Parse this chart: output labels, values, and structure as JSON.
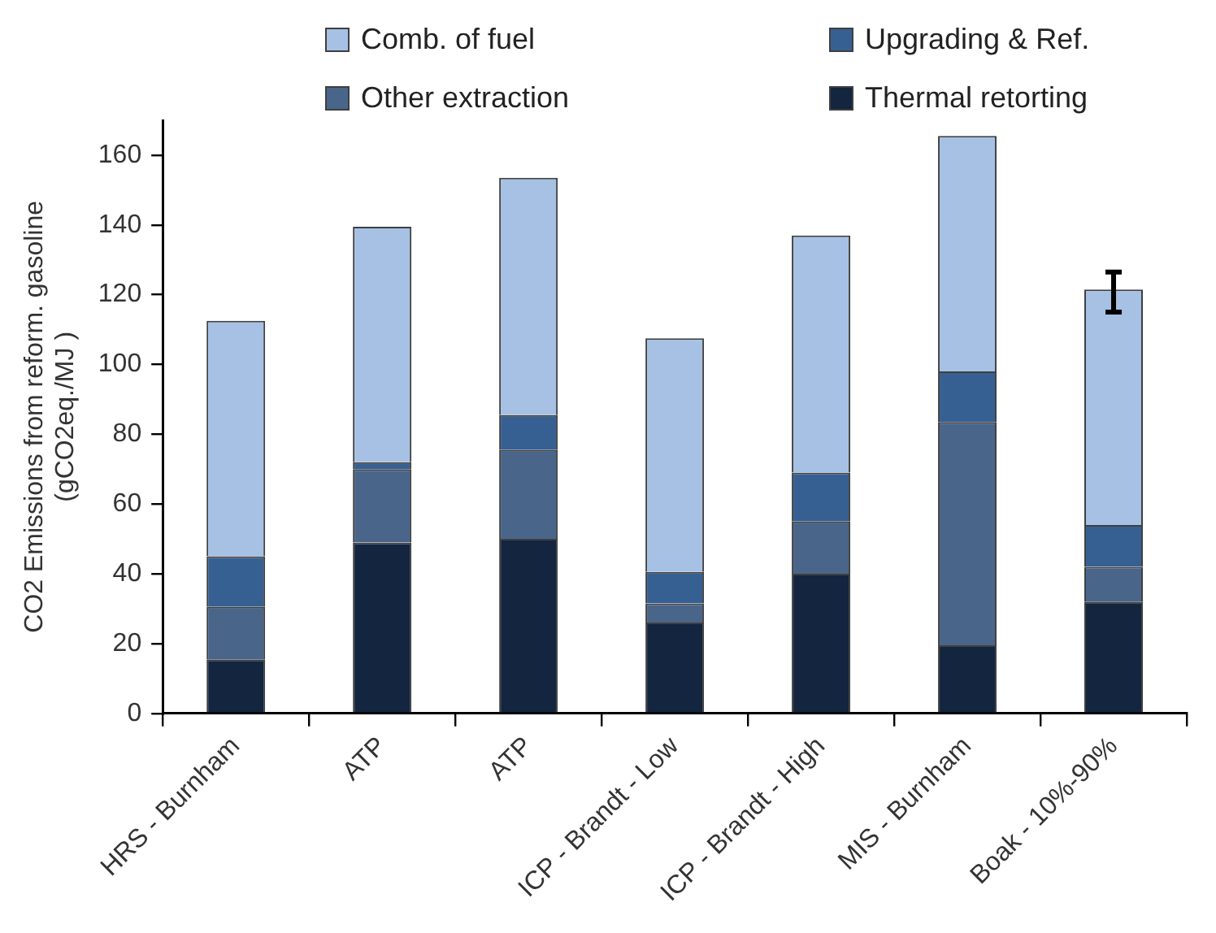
{
  "chart_data": {
    "type": "bar",
    "ylabel": "CO2 Emissions from reform. gasoline\n(gCO2eq./MJ )",
    "categories": [
      "HRS - Burnham",
      "ATP",
      "ATP",
      "ICP - Brandt - Low",
      "ICP - Brandt - High",
      "MIS - Burnham",
      "Boak - 10%-90%"
    ],
    "stacked": true,
    "series": [
      {
        "name": "Thermal retorting",
        "color": "#13253f",
        "values": [
          15.5,
          49,
          50,
          26,
          40,
          19.5,
          32
        ]
      },
      {
        "name": "Other extraction",
        "color": "#4a658a",
        "values": [
          15,
          21,
          25.5,
          5.5,
          15,
          64,
          10
        ]
      },
      {
        "name": "Upgrading & Ref.",
        "color": "#376092",
        "values": [
          14.5,
          2,
          10,
          9,
          14,
          14.5,
          12
        ]
      },
      {
        "name": "Comb. of fuel",
        "color": "#a6c1e4",
        "values": [
          67.5,
          67.5,
          68,
          67,
          68,
          67.5,
          67.5
        ],
        "errors": [
          null,
          null,
          null,
          null,
          null,
          null,
          [
            115,
            126.5
          ]
        ]
      }
    ],
    "ylim": [
      0,
      170
    ],
    "yticks": [
      0,
      20,
      40,
      60,
      80,
      100,
      120,
      140,
      160
    ],
    "grid": false,
    "legend": "top"
  }
}
